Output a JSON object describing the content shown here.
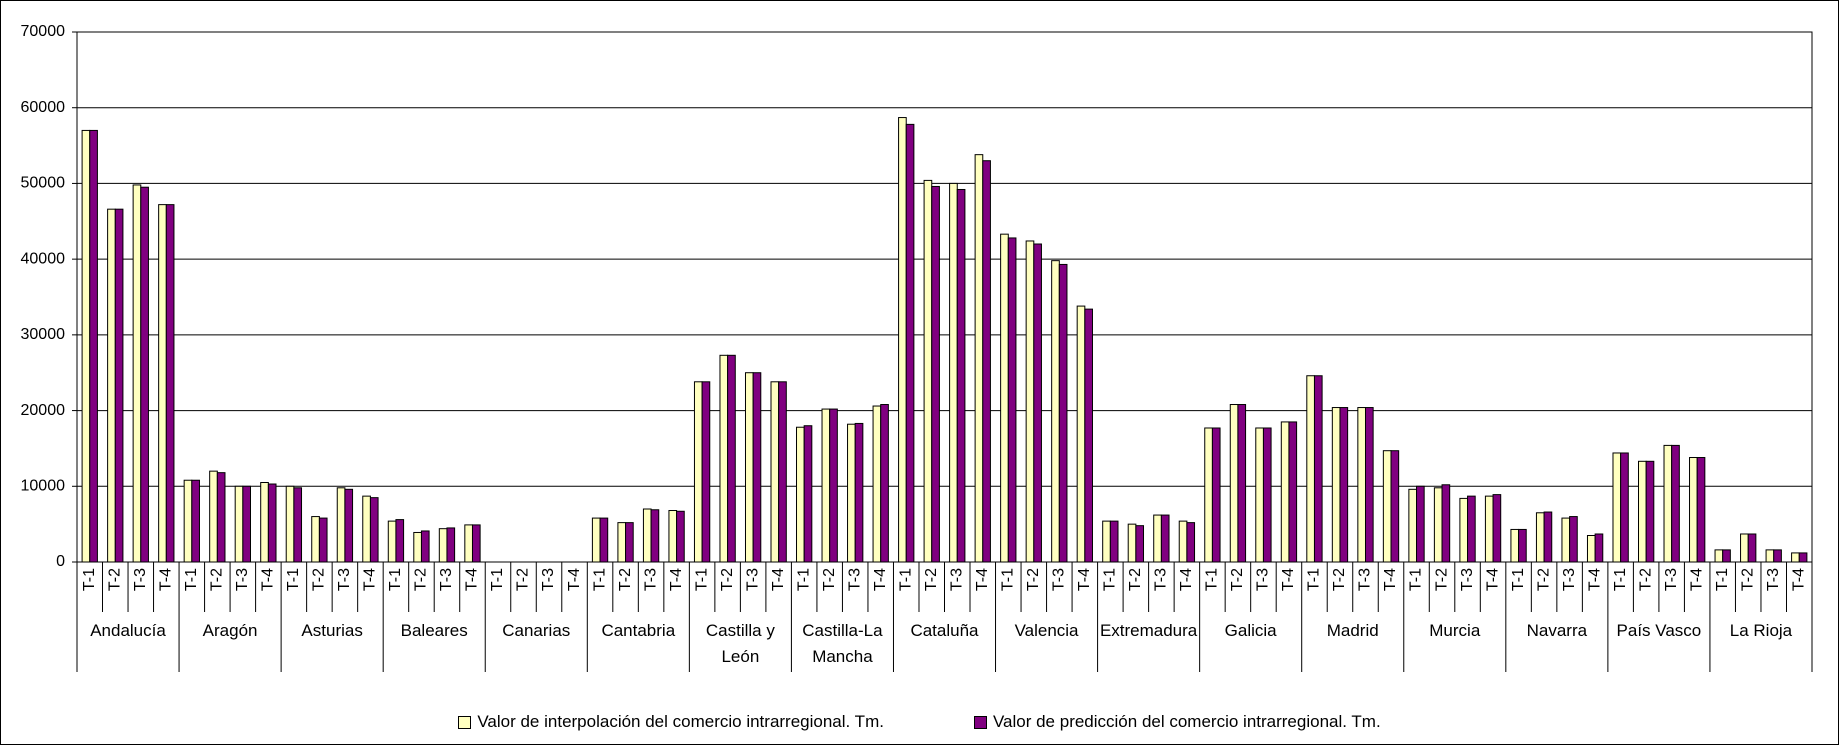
{
  "chart_data": {
    "type": "bar",
    "categories": [
      "T-1",
      "T-2",
      "T-3",
      "T-4",
      "T-1",
      "T-2",
      "T-3",
      "T-4",
      "T-1",
      "T-2",
      "T-3",
      "T-4",
      "T-1",
      "T-2",
      "T-3",
      "T-4",
      "T-1",
      "T-2",
      "T-3",
      "T-4",
      "T-1",
      "T-2",
      "T-3",
      "T-4",
      "T-1",
      "T-2",
      "T-3",
      "T-4",
      "T-1",
      "T-2",
      "T-3",
      "T-4",
      "T-1",
      "T-2",
      "T-3",
      "T-4",
      "T-1",
      "T-2",
      "T-3",
      "T-4",
      "T-1",
      "T-2",
      "T-3",
      "T-4",
      "T-1",
      "T-2",
      "T-3",
      "T-4",
      "T-1",
      "T-2",
      "T-3",
      "T-4",
      "T-1",
      "T-2",
      "T-3",
      "T-4",
      "T-1",
      "T-2",
      "T-3",
      "T-4",
      "T-1",
      "T-2",
      "T-3",
      "T-4",
      "T-1",
      "T-2",
      "T-3",
      "T-4"
    ],
    "groups": [
      "Andalucía",
      "Aragón",
      "Asturias",
      "Baleares",
      "Canarias",
      "Cantabria",
      "Castilla y León",
      "Castilla-La Mancha",
      "Cataluña",
      "Valencia",
      "Extremadura",
      "Galicia",
      "Madrid",
      "Murcia",
      "Navarra",
      "País Vasco",
      "La Rioja"
    ],
    "series": [
      {
        "name": "Valor de interpolación del comercio intrarregional. Tm.",
        "color": "#ffffc0",
        "values": [
          57000,
          46600,
          49800,
          47200,
          10800,
          12000,
          10000,
          10500,
          10000,
          6000,
          9800,
          8700,
          5400,
          3900,
          4400,
          4900,
          null,
          null,
          null,
          null,
          5800,
          5200,
          7000,
          6800,
          23800,
          27300,
          25000,
          23800,
          17800,
          20200,
          18200,
          20600,
          58700,
          50400,
          50000,
          53800,
          43300,
          42400,
          39800,
          33800,
          5400,
          5000,
          6200,
          5400,
          17700,
          20800,
          17700,
          18500,
          24600,
          20400,
          20400,
          14700,
          9600,
          9800,
          8400,
          8700,
          4300,
          6500,
          5800,
          3500,
          14400,
          13300,
          15400,
          13800,
          1600,
          3700,
          1600,
          1200
        ]
      },
      {
        "name": "Valor de predicción del comercio intrarregional. Tm.",
        "color": "#800080",
        "values": [
          57000,
          46600,
          49500,
          47200,
          10800,
          11800,
          10000,
          10300,
          9800,
          5800,
          9600,
          8500,
          5600,
          4100,
          4500,
          4900,
          null,
          null,
          null,
          null,
          5800,
          5200,
          6900,
          6700,
          23800,
          27300,
          25000,
          23800,
          18000,
          20200,
          18300,
          20800,
          57800,
          49600,
          49200,
          53000,
          42800,
          42000,
          39300,
          33400,
          5400,
          4800,
          6200,
          5200,
          17700,
          20800,
          17700,
          18500,
          24600,
          20400,
          20400,
          14700,
          10000,
          10200,
          8700,
          8900,
          4300,
          6600,
          6000,
          3700,
          14400,
          13300,
          15400,
          13800,
          1600,
          3700,
          1600,
          1200
        ]
      }
    ],
    "ylim": [
      0,
      70000
    ],
    "yticks": [
      0,
      10000,
      20000,
      30000,
      40000,
      50000,
      60000,
      70000
    ],
    "grid": true
  }
}
